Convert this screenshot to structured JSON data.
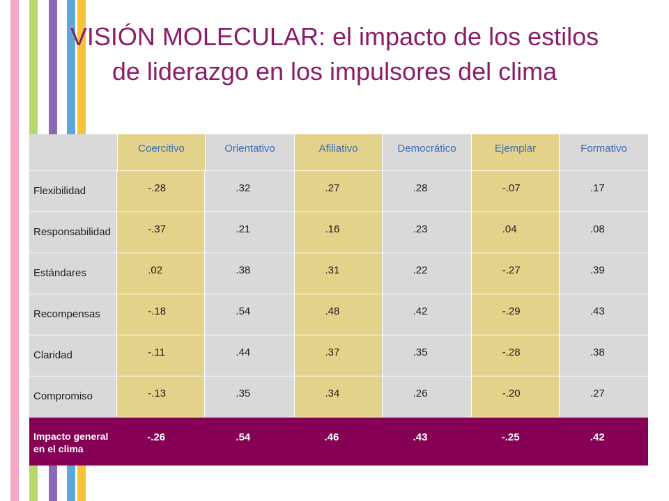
{
  "colors": {
    "stripe_pink": "#f6a6c7",
    "stripe_green": "#b7d96b",
    "stripe_purple": "#8e68b8",
    "stripe_blue": "#5fa6dc",
    "stripe_yellow": "#f6c23c",
    "title": "#8a1d6a",
    "highlight": "#e3d38a",
    "summary_row": "#860055",
    "header_text": "#3b6db3"
  },
  "title": {
    "line1": "VISIÓN MOLECULAR: el impacto de los estilos",
    "line2": "de liderazgo en los impulsores del clima"
  },
  "table": {
    "columns": [
      "Coercitivo",
      "Orientativo",
      "Afiliativo",
      "Democrático",
      "Ejemplar",
      "Formativo"
    ],
    "rows": [
      {
        "label": "Flexibilidad",
        "values": [
          "-.28",
          ".32",
          ".27",
          ".28",
          "-.07",
          ".17"
        ]
      },
      {
        "label": "Responsabilidad",
        "values": [
          "-.37",
          ".21",
          ".16",
          ".23",
          ".04",
          ".08"
        ]
      },
      {
        "label": "Estándares",
        "values": [
          ".02",
          ".38",
          ".31",
          ".22",
          "-.27",
          ".39"
        ]
      },
      {
        "label": "Recompensas",
        "values": [
          "-.18",
          ".54",
          ".48",
          ".42",
          "-.29",
          ".43"
        ]
      },
      {
        "label": "Claridad",
        "values": [
          "-.11",
          ".44",
          ".37",
          ".35",
          "-.28",
          ".38"
        ]
      },
      {
        "label": "Compromiso",
        "values": [
          "-.13",
          ".35",
          ".34",
          ".26",
          "-.20",
          ".27"
        ]
      }
    ],
    "summary": {
      "label_line1": "Impacto general",
      "label_line2": "en el clima",
      "values": [
        "-.26",
        ".54",
        ".46",
        ".43",
        "-.25",
        ".42"
      ]
    }
  }
}
